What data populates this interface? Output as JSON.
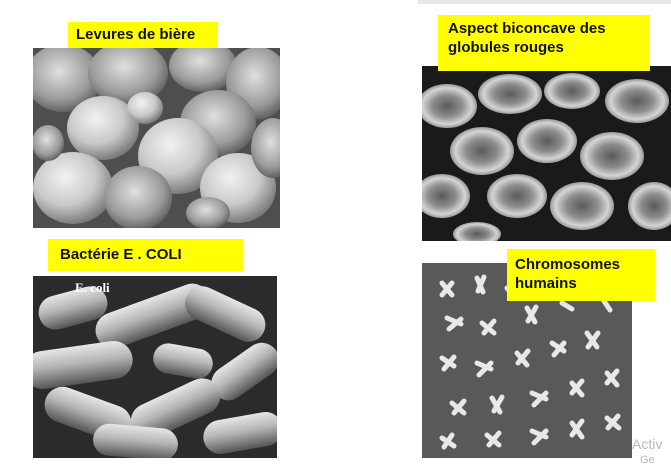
{
  "panels": {
    "yeast": {
      "caption": "Levures de bière"
    },
    "red_cells": {
      "caption": "Aspect biconcave des globules rouges"
    },
    "ecoli": {
      "caption": "Bactérie E . COLI",
      "inset_label": "E. coli"
    },
    "chromosomes": {
      "caption": "Chromosomes humains"
    }
  },
  "watermark": {
    "line1": "Activ",
    "line2": "Ge"
  }
}
